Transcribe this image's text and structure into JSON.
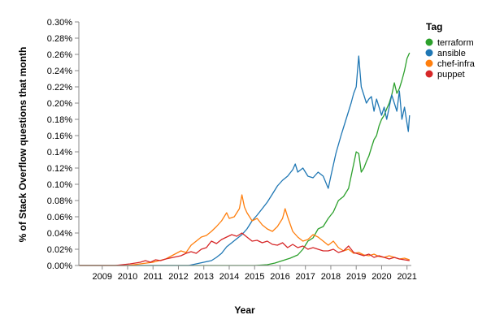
{
  "chart_data": {
    "type": "line",
    "xlabel": "Year",
    "ylabel": "% of Stack Overflow questions that month",
    "x_ticks": [
      "2009",
      "2010",
      "2011",
      "2012",
      "2013",
      "2014",
      "2015",
      "2016",
      "2017",
      "2018",
      "2019",
      "2020",
      "2021"
    ],
    "y_ticks": [
      "0.00%",
      "0.02%",
      "0.04%",
      "0.06%",
      "0.08%",
      "0.10%",
      "0.12%",
      "0.14%",
      "0.16%",
      "0.18%",
      "0.20%",
      "0.22%",
      "0.24%",
      "0.26%",
      "0.28%",
      "0.30%"
    ],
    "xlim": [
      2008.58,
      2021.67
    ],
    "ylim": [
      0,
      0.3
    ],
    "grid": false,
    "legend": {
      "title": "Tag",
      "placement": "right"
    },
    "series": [
      {
        "name": "terraform",
        "color": "#2ca02c",
        "points": [
          [
            2008.6,
            0
          ],
          [
            2014.5,
            0
          ],
          [
            2015.5,
            0
          ],
          [
            2016.0,
            0.001
          ],
          [
            2016.3,
            0.003
          ],
          [
            2016.6,
            0.006
          ],
          [
            2016.9,
            0.009
          ],
          [
            2017.2,
            0.013
          ],
          [
            2017.4,
            0.02
          ],
          [
            2017.6,
            0.03
          ],
          [
            2017.8,
            0.034
          ],
          [
            2018.0,
            0.045
          ],
          [
            2018.2,
            0.048
          ],
          [
            2018.4,
            0.058
          ],
          [
            2018.6,
            0.066
          ],
          [
            2018.8,
            0.08
          ],
          [
            2019.0,
            0.085
          ],
          [
            2019.2,
            0.095
          ],
          [
            2019.4,
            0.125
          ],
          [
            2019.5,
            0.14
          ],
          [
            2019.6,
            0.138
          ],
          [
            2019.7,
            0.115
          ],
          [
            2019.8,
            0.12
          ],
          [
            2019.9,
            0.128
          ],
          [
            2020.0,
            0.135
          ],
          [
            2020.1,
            0.145
          ],
          [
            2020.2,
            0.155
          ],
          [
            2020.3,
            0.16
          ],
          [
            2020.4,
            0.172
          ],
          [
            2020.5,
            0.18
          ],
          [
            2020.6,
            0.185
          ],
          [
            2020.7,
            0.193
          ],
          [
            2020.8,
            0.2
          ],
          [
            2020.9,
            0.21
          ],
          [
            2021.0,
            0.225
          ],
          [
            2021.1,
            0.212
          ],
          [
            2021.2,
            0.218
          ],
          [
            2021.3,
            0.228
          ],
          [
            2021.4,
            0.24
          ],
          [
            2021.5,
            0.255
          ],
          [
            2021.6,
            0.262
          ]
        ]
      },
      {
        "name": "ansible",
        "color": "#1f77b4",
        "points": [
          [
            2008.6,
            0
          ],
          [
            2012.9,
            0
          ],
          [
            2013.2,
            0.002
          ],
          [
            2013.5,
            0.004
          ],
          [
            2013.8,
            0.006
          ],
          [
            2014.0,
            0.01
          ],
          [
            2014.2,
            0.015
          ],
          [
            2014.4,
            0.023
          ],
          [
            2014.6,
            0.028
          ],
          [
            2014.8,
            0.033
          ],
          [
            2015.0,
            0.038
          ],
          [
            2015.2,
            0.045
          ],
          [
            2015.4,
            0.055
          ],
          [
            2015.6,
            0.062
          ],
          [
            2015.8,
            0.07
          ],
          [
            2016.0,
            0.078
          ],
          [
            2016.2,
            0.088
          ],
          [
            2016.4,
            0.098
          ],
          [
            2016.6,
            0.105
          ],
          [
            2016.8,
            0.11
          ],
          [
            2017.0,
            0.118
          ],
          [
            2017.1,
            0.125
          ],
          [
            2017.2,
            0.115
          ],
          [
            2017.4,
            0.12
          ],
          [
            2017.6,
            0.11
          ],
          [
            2017.8,
            0.108
          ],
          [
            2018.0,
            0.115
          ],
          [
            2018.2,
            0.11
          ],
          [
            2018.4,
            0.095
          ],
          [
            2018.5,
            0.11
          ],
          [
            2018.7,
            0.138
          ],
          [
            2018.9,
            0.16
          ],
          [
            2019.0,
            0.17
          ],
          [
            2019.1,
            0.18
          ],
          [
            2019.3,
            0.2
          ],
          [
            2019.4,
            0.212
          ],
          [
            2019.5,
            0.22
          ],
          [
            2019.55,
            0.24
          ],
          [
            2019.6,
            0.258
          ],
          [
            2019.7,
            0.22
          ],
          [
            2019.8,
            0.21
          ],
          [
            2019.9,
            0.2
          ],
          [
            2020.0,
            0.205
          ],
          [
            2020.1,
            0.208
          ],
          [
            2020.2,
            0.19
          ],
          [
            2020.3,
            0.205
          ],
          [
            2020.4,
            0.195
          ],
          [
            2020.5,
            0.185
          ],
          [
            2020.6,
            0.195
          ],
          [
            2020.7,
            0.18
          ],
          [
            2020.8,
            0.195
          ],
          [
            2020.9,
            0.21
          ],
          [
            2021.0,
            0.2
          ],
          [
            2021.1,
            0.19
          ],
          [
            2021.2,
            0.215
          ],
          [
            2021.3,
            0.18
          ],
          [
            2021.4,
            0.195
          ],
          [
            2021.5,
            0.175
          ],
          [
            2021.55,
            0.165
          ],
          [
            2021.6,
            0.185
          ]
        ]
      },
      {
        "name": "chef-infra",
        "color": "#ff7f0e",
        "points": [
          [
            2008.6,
            0
          ],
          [
            2010.5,
            0
          ],
          [
            2011.0,
            0.002
          ],
          [
            2011.5,
            0.004
          ],
          [
            2012.0,
            0.008
          ],
          [
            2012.3,
            0.013
          ],
          [
            2012.6,
            0.018
          ],
          [
            2012.8,
            0.016
          ],
          [
            2013.0,
            0.025
          ],
          [
            2013.2,
            0.03
          ],
          [
            2013.4,
            0.035
          ],
          [
            2013.6,
            0.037
          ],
          [
            2013.8,
            0.042
          ],
          [
            2014.0,
            0.048
          ],
          [
            2014.2,
            0.055
          ],
          [
            2014.4,
            0.065
          ],
          [
            2014.5,
            0.058
          ],
          [
            2014.7,
            0.06
          ],
          [
            2014.9,
            0.07
          ],
          [
            2015.0,
            0.087
          ],
          [
            2015.1,
            0.072
          ],
          [
            2015.2,
            0.065
          ],
          [
            2015.4,
            0.055
          ],
          [
            2015.6,
            0.058
          ],
          [
            2015.8,
            0.05
          ],
          [
            2016.0,
            0.045
          ],
          [
            2016.2,
            0.042
          ],
          [
            2016.4,
            0.048
          ],
          [
            2016.6,
            0.058
          ],
          [
            2016.7,
            0.07
          ],
          [
            2016.8,
            0.06
          ],
          [
            2017.0,
            0.042
          ],
          [
            2017.2,
            0.035
          ],
          [
            2017.4,
            0.03
          ],
          [
            2017.6,
            0.032
          ],
          [
            2017.8,
            0.038
          ],
          [
            2018.0,
            0.035
          ],
          [
            2018.2,
            0.03
          ],
          [
            2018.4,
            0.025
          ],
          [
            2018.6,
            0.03
          ],
          [
            2018.8,
            0.022
          ],
          [
            2019.0,
            0.018
          ],
          [
            2019.2,
            0.02
          ],
          [
            2019.4,
            0.015
          ],
          [
            2019.6,
            0.016
          ],
          [
            2019.8,
            0.013
          ],
          [
            2020.0,
            0.012
          ],
          [
            2020.2,
            0.014
          ],
          [
            2020.4,
            0.011
          ],
          [
            2020.6,
            0.01
          ],
          [
            2020.8,
            0.012
          ],
          [
            2021.0,
            0.01
          ],
          [
            2021.2,
            0.008
          ],
          [
            2021.4,
            0.009
          ],
          [
            2021.6,
            0.007
          ]
        ]
      },
      {
        "name": "puppet",
        "color": "#d62728",
        "points": [
          [
            2008.6,
            0
          ],
          [
            2010.0,
            0
          ],
          [
            2010.3,
            0.001
          ],
          [
            2010.6,
            0.002
          ],
          [
            2010.8,
            0.003
          ],
          [
            2011.0,
            0.004
          ],
          [
            2011.2,
            0.006
          ],
          [
            2011.4,
            0.004
          ],
          [
            2011.6,
            0.007
          ],
          [
            2011.8,
            0.006
          ],
          [
            2012.0,
            0.008
          ],
          [
            2012.3,
            0.01
          ],
          [
            2012.6,
            0.012
          ],
          [
            2012.8,
            0.015
          ],
          [
            2013.0,
            0.017
          ],
          [
            2013.2,
            0.015
          ],
          [
            2013.4,
            0.02
          ],
          [
            2013.6,
            0.022
          ],
          [
            2013.8,
            0.03
          ],
          [
            2014.0,
            0.027
          ],
          [
            2014.2,
            0.032
          ],
          [
            2014.4,
            0.035
          ],
          [
            2014.6,
            0.038
          ],
          [
            2014.8,
            0.036
          ],
          [
            2015.0,
            0.04
          ],
          [
            2015.2,
            0.035
          ],
          [
            2015.4,
            0.03
          ],
          [
            2015.6,
            0.031
          ],
          [
            2015.8,
            0.028
          ],
          [
            2016.0,
            0.03
          ],
          [
            2016.2,
            0.026
          ],
          [
            2016.4,
            0.025
          ],
          [
            2016.6,
            0.028
          ],
          [
            2016.8,
            0.022
          ],
          [
            2017.0,
            0.026
          ],
          [
            2017.2,
            0.022
          ],
          [
            2017.4,
            0.024
          ],
          [
            2017.6,
            0.02
          ],
          [
            2017.8,
            0.022
          ],
          [
            2018.0,
            0.02
          ],
          [
            2018.2,
            0.018
          ],
          [
            2018.4,
            0.018
          ],
          [
            2018.6,
            0.02
          ],
          [
            2018.8,
            0.016
          ],
          [
            2019.0,
            0.018
          ],
          [
            2019.2,
            0.024
          ],
          [
            2019.4,
            0.016
          ],
          [
            2019.6,
            0.014
          ],
          [
            2019.8,
            0.012
          ],
          [
            2020.0,
            0.014
          ],
          [
            2020.2,
            0.01
          ],
          [
            2020.4,
            0.012
          ],
          [
            2020.6,
            0.01
          ],
          [
            2020.8,
            0.008
          ],
          [
            2021.0,
            0.01
          ],
          [
            2021.2,
            0.008
          ],
          [
            2021.4,
            0.007
          ],
          [
            2021.6,
            0.006
          ]
        ]
      }
    ]
  }
}
